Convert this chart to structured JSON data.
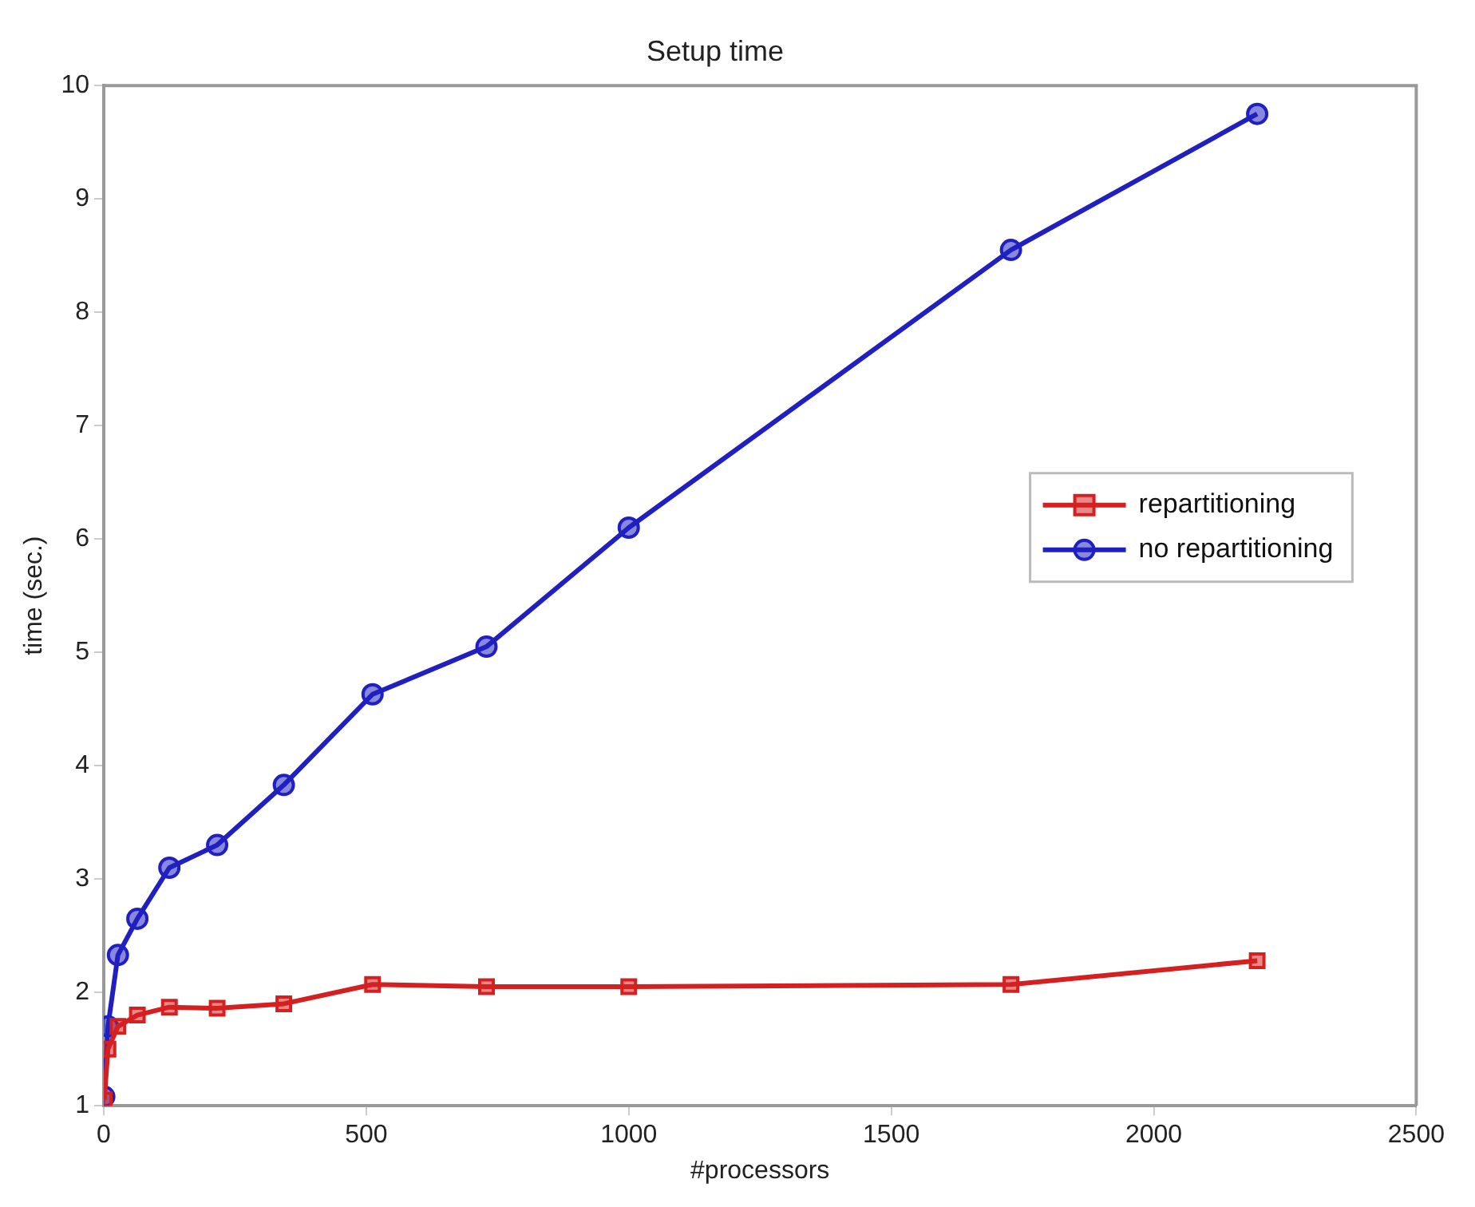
{
  "chart_data": {
    "type": "line",
    "title": "Setup time",
    "xlabel": "#processors",
    "ylabel": "time (sec.)",
    "xlim": [
      0,
      2500
    ],
    "xticks": [
      0,
      500,
      1000,
      1500,
      2000,
      2500
    ],
    "ylim": [
      1,
      10
    ],
    "yticks": [
      1,
      2,
      3,
      4,
      5,
      6,
      7,
      8,
      9,
      10
    ],
    "grid": false,
    "legend": "right",
    "series": [
      {
        "name": "repartitioning",
        "color": "#d42020",
        "marker": "square",
        "x": [
          1,
          8,
          27,
          64,
          125,
          216,
          343,
          512,
          729,
          1000,
          1728,
          2197
        ],
        "values": [
          1.05,
          1.5,
          1.7,
          1.8,
          1.87,
          1.86,
          1.9,
          2.07,
          2.05,
          2.05,
          2.07,
          2.28
        ]
      },
      {
        "name": "no repartitioning",
        "color": "#2020c0",
        "marker": "circle",
        "x": [
          1,
          8,
          27,
          64,
          125,
          216,
          343,
          512,
          729,
          1000,
          1728,
          2197
        ],
        "values": [
          1.08,
          1.7,
          2.33,
          2.65,
          3.1,
          3.3,
          3.83,
          4.63,
          5.05,
          6.1,
          8.55,
          9.75
        ]
      }
    ]
  }
}
